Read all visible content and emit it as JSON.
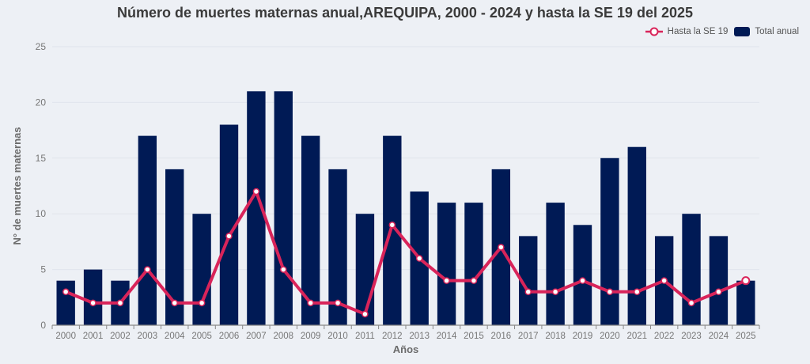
{
  "chart_data": {
    "type": "bar",
    "title": "Número de muertes maternas anual,AREQUIPA, 2000 - 2024 y hasta la SE 19 del 2025",
    "xlabel": "Años",
    "ylabel": "N° de muertes maternas",
    "ylim": [
      0,
      25
    ],
    "yticks": [
      0,
      5,
      10,
      15,
      20,
      25
    ],
    "grid": true,
    "legend_position": "top-right",
    "categories": [
      "2000",
      "2001",
      "2002",
      "2003",
      "2004",
      "2005",
      "2006",
      "2007",
      "2008",
      "2009",
      "2010",
      "2011",
      "2012",
      "2013",
      "2014",
      "2015",
      "2016",
      "2017",
      "2018",
      "2019",
      "2020",
      "2021",
      "2022",
      "2023",
      "2024",
      "2025"
    ],
    "series": [
      {
        "name": "Total anual",
        "type": "bar",
        "color": "#001a55",
        "values": [
          4,
          5,
          4,
          17,
          14,
          10,
          18,
          21,
          21,
          17,
          14,
          10,
          17,
          12,
          11,
          11,
          14,
          8,
          11,
          9,
          15,
          16,
          8,
          10,
          8,
          4
        ]
      },
      {
        "name": "Hasta la SE 19",
        "type": "line",
        "color": "#d9245a",
        "values": [
          3,
          2,
          2,
          5,
          2,
          2,
          8,
          12,
          5,
          2,
          2,
          1,
          9,
          6,
          4,
          4,
          7,
          3,
          3,
          4,
          3,
          3,
          4,
          2,
          3,
          4
        ]
      }
    ]
  },
  "legend": {
    "line_label": "Hasta la SE 19",
    "bar_label": "Total anual"
  }
}
